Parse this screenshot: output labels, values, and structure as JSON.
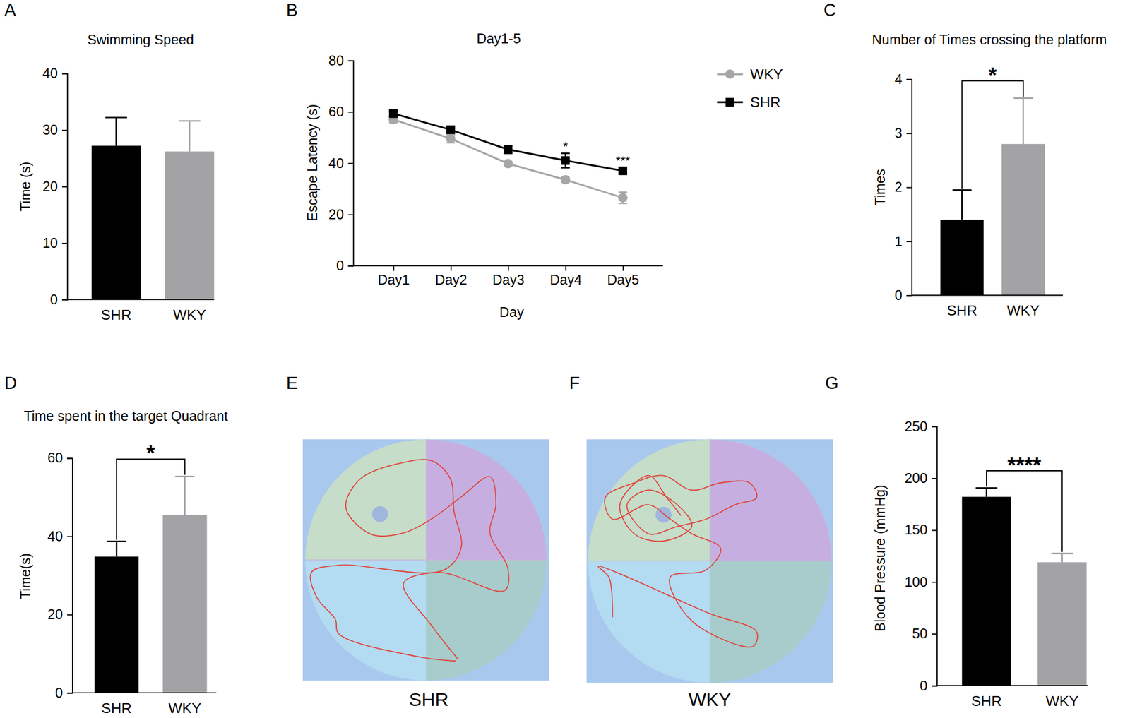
{
  "chart_data": [
    {
      "type": "bar",
      "panel_label": "A",
      "title": "Swimming Speed",
      "ylabel": "Time (s)",
      "categories": [
        "SHR",
        "WKY"
      ],
      "values": [
        27.2,
        26.2
      ],
      "errors": [
        5.0,
        5.4
      ],
      "colors": [
        "#000000",
        "#a3a3a6"
      ],
      "ylim": [
        0,
        40
      ],
      "yticks": [
        0,
        10,
        20,
        30,
        40
      ]
    },
    {
      "type": "line",
      "panel_label": "B",
      "title": "Day1-5",
      "xlabel": "Day",
      "ylabel": "Escape Latency (s)",
      "categories": [
        "Day1",
        "Day2",
        "Day3",
        "Day4",
        "Day5"
      ],
      "series": [
        {
          "name": "WKY",
          "color": "#a6a6a6",
          "marker": "circle",
          "values": [
            57.0,
            49.5,
            39.8,
            33.5,
            26.5
          ],
          "errors": [
            1.2,
            1.6,
            0.8,
            0.9,
            2.2
          ]
        },
        {
          "name": "SHR",
          "color": "#000000",
          "marker": "square",
          "values": [
            59.3,
            53.0,
            45.3,
            41.0,
            37.0
          ],
          "errors": [
            1.0,
            1.0,
            1.5,
            2.8,
            1.2
          ]
        }
      ],
      "annotations": [
        {
          "text": "*",
          "x": "Day4"
        },
        {
          "text": "***",
          "x": "Day5"
        }
      ],
      "legend": "right",
      "ylim": [
        0,
        80
      ],
      "yticks": [
        0,
        20,
        40,
        60,
        80
      ]
    },
    {
      "type": "bar",
      "panel_label": "C",
      "title": "Number of Times crossing the platform",
      "ylabel": "Times",
      "categories": [
        "SHR",
        "WKY"
      ],
      "values": [
        1.4,
        2.8
      ],
      "errors": [
        0.55,
        0.85
      ],
      "colors": [
        "#000000",
        "#a3a3a6"
      ],
      "annotation": "*",
      "ylim": [
        0,
        4
      ],
      "yticks": [
        0,
        1,
        2,
        3,
        4
      ]
    },
    {
      "type": "bar",
      "panel_label": "D",
      "title": "Time spent in the target Quadrant",
      "ylabel": "Time(s)",
      "categories": [
        "SHR",
        "WKY"
      ],
      "values": [
        34.8,
        45.5
      ],
      "errors": [
        3.9,
        9.8
      ],
      "colors": [
        "#000000",
        "#a3a3a6"
      ],
      "annotation": "*",
      "ylim": [
        0,
        60
      ],
      "yticks": [
        0,
        20,
        40,
        60
      ]
    },
    {
      "type": "line",
      "panel_label": "E",
      "xlabel": "SHR",
      "color": "#e0453c",
      "tick_labels": false,
      "xlim": [
        0,
        100
      ],
      "ylim": [
        0,
        100
      ],
      "x": [
        62.9,
        52.6,
        40.9,
        55.6,
        81.9,
        83.3,
        76.0,
        78.4,
        76.0,
        64.3,
        52.6,
        40.9,
        27.8,
        17.5,
        23.4,
        40.9,
        52.6,
        59.9,
        61.4,
        64.3,
        57.0,
        14.6,
        3.5,
        5.8,
        13.2,
        14.6,
        46.8,
        62.0
      ],
      "values": [
        9.0,
        22.4,
        40.3,
        44.8,
        37.3,
        46.3,
        61.2,
        73.1,
        84.5,
        76.1,
        67.2,
        61.2,
        60.6,
        71.6,
        83.6,
        90.4,
        91.0,
        83.6,
        70.1,
        55.2,
        45.7,
        47.8,
        44.8,
        34.3,
        25.4,
        19.4,
        9.9,
        8.1
      ]
    },
    {
      "type": "line",
      "panel_label": "F",
      "xlabel": "WKY",
      "color": "#e0453c",
      "tick_labels": false,
      "xlim": [
        0,
        100
      ],
      "ylim": [
        0,
        100
      ],
      "x": [
        10.5,
        9.1,
        4.7,
        50.0,
        69.0,
        67.5,
        42.7,
        33.9,
        48.5,
        54.4,
        42.7,
        33.9,
        25.1,
        10.5,
        7.6,
        19.3,
        31.0,
        42.7,
        54.4,
        66.1,
        69.0,
        60.2,
        48.5,
        36.8,
        25.1,
        16.4,
        25.1,
        36.8,
        42.7,
        31.0,
        19.3,
        13.5,
        25.1,
        32.5,
        38.3
      ],
      "values": [
        26.9,
        43.3,
        47.8,
        28.4,
        20.9,
        14.9,
        25.4,
        43.3,
        46.3,
        55.2,
        61.2,
        67.2,
        73.1,
        67.2,
        76.1,
        82.1,
        85.1,
        79.1,
        82.1,
        82.1,
        76.1,
        73.1,
        67.2,
        64.2,
        61.2,
        73.1,
        79.1,
        73.1,
        64.2,
        58.2,
        61.2,
        73.1,
        85.1,
        76.1,
        68.7
      ]
    },
    {
      "type": "bar",
      "panel_label": "G",
      "ylabel": "Blood Pressure (mmHg)",
      "categories": [
        "SHR",
        "WKY"
      ],
      "values": [
        182,
        119
      ],
      "errors": [
        8.5,
        8.5
      ],
      "colors": [
        "#000000",
        "#a3a3a6"
      ],
      "annotation": "****",
      "ylim": [
        0,
        250
      ],
      "yticks": [
        0,
        50,
        100,
        150,
        200,
        250
      ]
    }
  ]
}
